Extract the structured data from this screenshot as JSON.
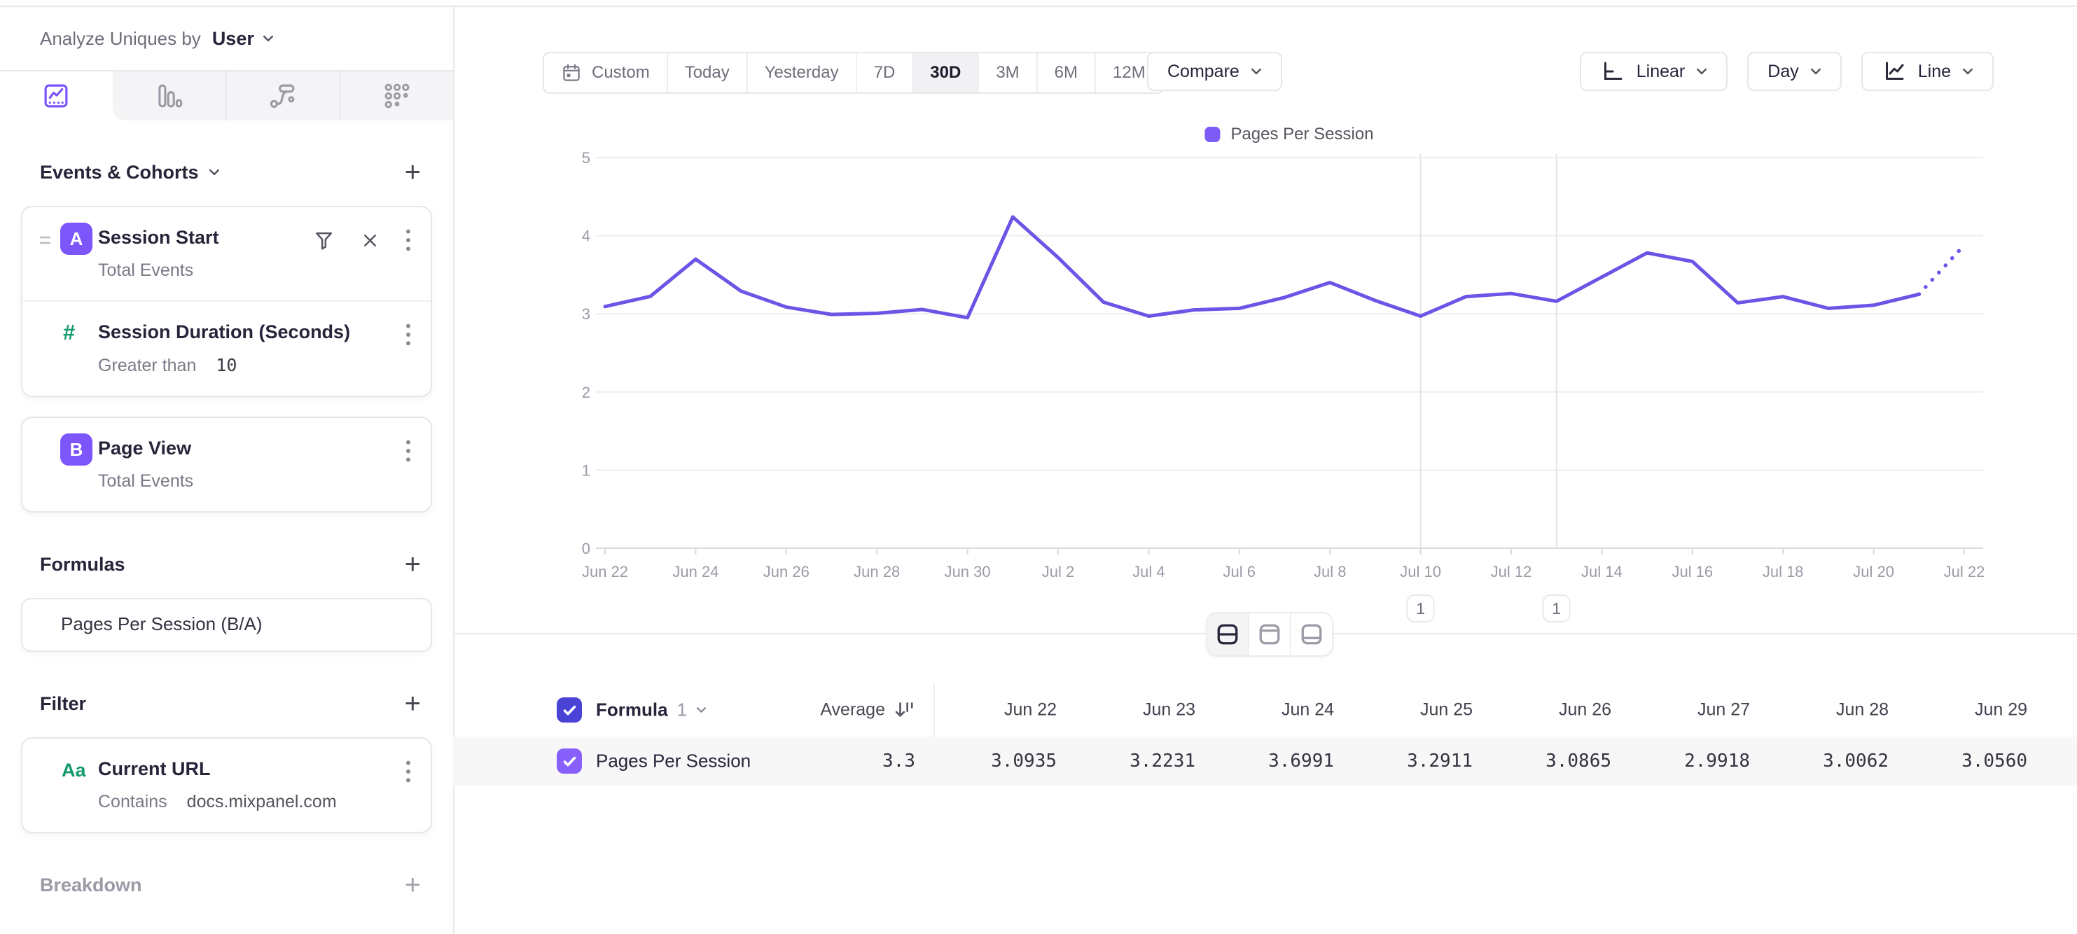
{
  "page": {
    "accent": "#7c52ff",
    "line_color": "#6d54e6",
    "green": "#12996b",
    "header_checkbox_color": "#4b42d6",
    "row_checkbox_color": "#8760fb"
  },
  "topbar": {
    "analyze_label": "Analyze Uniques by",
    "analyze_value": "User"
  },
  "sidebar": {
    "tabs": [
      {
        "name": "insights-line",
        "active": true
      },
      {
        "name": "bar-chart",
        "active": false
      },
      {
        "name": "flows",
        "active": false
      },
      {
        "name": "retention",
        "active": false
      }
    ],
    "events_header": "Events & Cohorts",
    "add_label": "+",
    "events": [
      {
        "badge": "A",
        "title": "Session Start",
        "subtitle": "Total Events"
      },
      {
        "badge": "#",
        "title": "Session Duration (Seconds)",
        "operator": "Greater than",
        "value": "10"
      },
      {
        "badge": "B",
        "title": "Page View",
        "subtitle": "Total Events"
      }
    ],
    "formulas_header": "Formulas",
    "formula": "Pages Per Session (B/A)",
    "filter_header": "Filter",
    "filter": {
      "badge": "Aa",
      "title": "Current URL",
      "operator": "Contains",
      "value": "docs.mixpanel.com"
    },
    "breakdown_header": "Breakdown"
  },
  "toolbar": {
    "ranges": [
      "Custom",
      "Today",
      "Yesterday",
      "7D",
      "30D",
      "3M",
      "6M",
      "12M"
    ],
    "active_range": "30D",
    "compare_label": "Compare",
    "scale_label": "Linear",
    "interval_label": "Day",
    "type_label": "Line"
  },
  "chart_data": {
    "type": "line",
    "legend": [
      {
        "label": "Pages Per Session",
        "color": "#7c5cf4"
      }
    ],
    "x": [
      "Jun 22",
      "Jun 23",
      "Jun 24",
      "Jun 25",
      "Jun 26",
      "Jun 27",
      "Jun 28",
      "Jun 29",
      "Jun 30",
      "Jul 1",
      "Jul 2",
      "Jul 3",
      "Jul 4",
      "Jul 5",
      "Jul 6",
      "Jul 7",
      "Jul 8",
      "Jul 9",
      "Jul 10",
      "Jul 11",
      "Jul 12",
      "Jul 13",
      "Jul 14",
      "Jul 15",
      "Jul 16",
      "Jul 17",
      "Jul 18",
      "Jul 19",
      "Jul 20",
      "Jul 21",
      "Jul 22"
    ],
    "x_tick_every": 2,
    "ylim": [
      0,
      5
    ],
    "yticks": [
      0,
      1,
      2,
      3,
      4,
      5
    ],
    "grid": "horizontal",
    "legend_position": "top-center",
    "series": [
      {
        "name": "Pages Per Session",
        "color": "#6d54e6",
        "values": [
          3.0935,
          3.2231,
          3.6991,
          3.2911,
          3.0865,
          2.9918,
          3.0062,
          3.056,
          2.95,
          4.24,
          3.72,
          3.15,
          2.97,
          3.05,
          3.07,
          3.21,
          3.4,
          3.17,
          2.97,
          3.22,
          3.26,
          3.16,
          3.47,
          3.78,
          3.67,
          3.14,
          3.22,
          3.07,
          3.11,
          3.25,
          3.88
        ]
      }
    ],
    "last_segment_dotted": true,
    "annotations": [
      {
        "index": 18,
        "x": "Jul 10",
        "label": "1"
      },
      {
        "index": 21,
        "x": "Jul 13",
        "label": "1"
      }
    ]
  },
  "table": {
    "group_label": "Formula",
    "group_number": "1",
    "average_label": "Average",
    "row_label": "Pages Per Session",
    "average_value": "3.3",
    "columns": [
      "Jun 22",
      "Jun 23",
      "Jun 24",
      "Jun 25",
      "Jun 26",
      "Jun 27",
      "Jun 28",
      "Jun 29"
    ],
    "values": [
      "3.0935",
      "3.2231",
      "3.6991",
      "3.2911",
      "3.0865",
      "2.9918",
      "3.0062",
      "3.0560"
    ]
  }
}
